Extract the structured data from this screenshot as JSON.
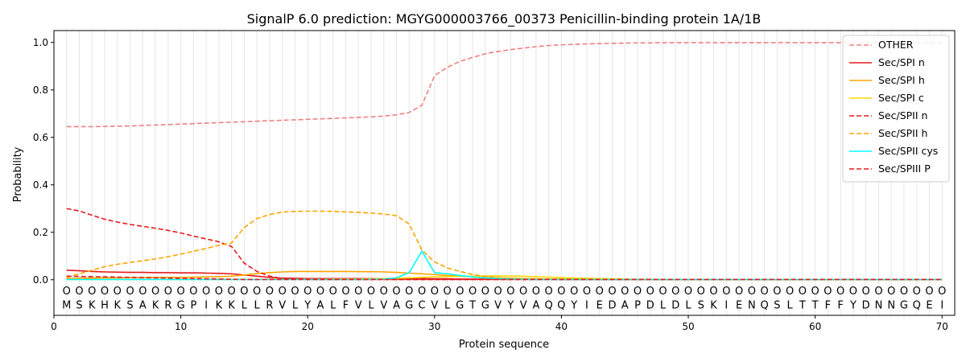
{
  "chart_data": {
    "type": "line",
    "title": "SignalP 6.0 prediction: MGYG000003766_00373 Penicillin-binding protein 1A/1B",
    "xlabel": "Protein sequence",
    "ylabel": "Probability",
    "xlim": [
      0,
      71
    ],
    "ylim": [
      -0.15,
      1.05
    ],
    "xticks": [
      0,
      10,
      20,
      30,
      40,
      50,
      60,
      70
    ],
    "yticks": [
      0.0,
      0.2,
      0.4,
      0.6,
      0.8,
      1.0
    ],
    "xtick_labels": [
      "0",
      "10",
      "20",
      "30",
      "40",
      "50",
      "60",
      "70"
    ],
    "ytick_labels": [
      "0.0",
      "0.2",
      "0.4",
      "0.6",
      "0.8",
      "1.0"
    ],
    "grid": "vertical lines at each residue",
    "legend_position": "top-right",
    "sequence": [
      "M",
      "S",
      "K",
      "H",
      "K",
      "S",
      "A",
      "K",
      "R",
      "G",
      "P",
      "I",
      "K",
      "K",
      "L",
      "L",
      "R",
      "V",
      "L",
      "Y",
      "A",
      "L",
      "F",
      "V",
      "L",
      "V",
      "A",
      "G",
      "C",
      "V",
      "L",
      "G",
      "T",
      "G",
      "V",
      "Y",
      "V",
      "A",
      "Q",
      "Q",
      "Y",
      "I",
      "E",
      "D",
      "A",
      "P",
      "D",
      "L",
      "D",
      "L",
      "S",
      "K",
      "I",
      "E",
      "N",
      "Q",
      "S",
      "L",
      "T",
      "T",
      "F",
      "F",
      "Y",
      "D",
      "N",
      "N",
      "G",
      "Q",
      "E",
      "I"
    ],
    "region_label": "O",
    "series": [
      {
        "name": "OTHER",
        "color": "#f08080",
        "dash": "dashed",
        "values": [
          0.645,
          0.645,
          0.645,
          0.646,
          0.647,
          0.648,
          0.65,
          0.652,
          0.654,
          0.656,
          0.658,
          0.66,
          0.662,
          0.664,
          0.666,
          0.668,
          0.67,
          0.672,
          0.674,
          0.676,
          0.678,
          0.68,
          0.682,
          0.684,
          0.686,
          0.69,
          0.695,
          0.705,
          0.735,
          0.86,
          0.895,
          0.92,
          0.937,
          0.952,
          0.962,
          0.97,
          0.976,
          0.982,
          0.987,
          0.99,
          0.992,
          0.994,
          0.995,
          0.996,
          0.997,
          0.998,
          0.998,
          0.999,
          0.999,
          0.999,
          0.999,
          0.999,
          0.999,
          0.999,
          0.999,
          0.999,
          0.999,
          0.999,
          0.999,
          0.999,
          0.999,
          0.999,
          0.999,
          0.999,
          0.999,
          0.999,
          0.999,
          0.999,
          0.999,
          0.999
        ]
      },
      {
        "name": "Sec/SPI n",
        "color": "#e41a1c",
        "dash": "solid",
        "values": [
          0.04,
          0.038,
          0.035,
          0.033,
          0.032,
          0.031,
          0.031,
          0.03,
          0.03,
          0.029,
          0.029,
          0.028,
          0.027,
          0.025,
          0.02,
          0.015,
          0.01,
          0.007,
          0.006,
          0.005,
          0.005,
          0.005,
          0.005,
          0.005,
          0.005,
          0.005,
          0.005,
          0.005,
          0.005,
          0.004,
          0.004,
          0.003,
          0.003,
          0.003,
          0.002,
          0.002,
          0.002,
          0.002,
          0.002,
          0.001,
          0.001,
          0.001,
          0.001,
          0.001,
          0.001,
          0.001,
          0.001,
          0.001,
          0.001,
          0.001,
          0.001,
          0.001,
          0.001,
          0.001,
          0.001,
          0.001,
          0.001,
          0.001,
          0.001,
          0.001,
          0.001,
          0.001,
          0.001,
          0.001,
          0.001,
          0.001,
          0.001,
          0.001,
          0.001,
          0.001
        ]
      },
      {
        "name": "Sec/SPI h",
        "color": "#ffa500",
        "dash": "solid",
        "values": [
          0.005,
          0.006,
          0.007,
          0.008,
          0.008,
          0.009,
          0.009,
          0.01,
          0.01,
          0.01,
          0.011,
          0.012,
          0.013,
          0.015,
          0.02,
          0.026,
          0.03,
          0.033,
          0.035,
          0.035,
          0.035,
          0.035,
          0.035,
          0.034,
          0.034,
          0.033,
          0.031,
          0.028,
          0.025,
          0.022,
          0.018,
          0.015,
          0.012,
          0.01,
          0.008,
          0.006,
          0.005,
          0.004,
          0.003,
          0.003,
          0.002,
          0.002,
          0.002,
          0.001,
          0.001,
          0.001,
          0.001,
          0.001,
          0.001,
          0.001,
          0.001,
          0.001,
          0.001,
          0.001,
          0.001,
          0.001,
          0.001,
          0.001,
          0.001,
          0.001,
          0.001,
          0.001,
          0.001,
          0.001,
          0.001,
          0.001,
          0.001,
          0.001,
          0.001,
          0.001
        ]
      },
      {
        "name": "Sec/SPI c",
        "color": "#ffd700",
        "dash": "solid",
        "values": [
          0.001,
          0.001,
          0.001,
          0.001,
          0.001,
          0.001,
          0.001,
          0.001,
          0.001,
          0.001,
          0.001,
          0.001,
          0.001,
          0.001,
          0.001,
          0.001,
          0.002,
          0.002,
          0.002,
          0.002,
          0.002,
          0.003,
          0.003,
          0.003,
          0.004,
          0.005,
          0.006,
          0.008,
          0.01,
          0.012,
          0.013,
          0.014,
          0.015,
          0.016,
          0.016,
          0.016,
          0.015,
          0.013,
          0.011,
          0.009,
          0.007,
          0.006,
          0.005,
          0.004,
          0.003,
          0.002,
          0.002,
          0.001,
          0.001,
          0.001,
          0.001,
          0.001,
          0.001,
          0.001,
          0.001,
          0.001,
          0.001,
          0.001,
          0.001,
          0.001,
          0.001,
          0.001,
          0.001,
          0.001,
          0.001,
          0.001,
          0.001,
          0.001,
          0.001,
          0.001
        ]
      },
      {
        "name": "Sec/SPII n",
        "color": "#e41a1c",
        "dash": "dashed",
        "values": [
          0.3,
          0.29,
          0.272,
          0.255,
          0.243,
          0.233,
          0.225,
          0.217,
          0.208,
          0.197,
          0.184,
          0.172,
          0.16,
          0.14,
          0.07,
          0.035,
          0.015,
          0.005,
          0.002,
          0.001,
          0.001,
          0.001,
          0.001,
          0.001,
          0.001,
          0.001,
          0.001,
          0.001,
          0.001,
          0.001,
          0.001,
          0.001,
          0.001,
          0.001,
          0.001,
          0.001,
          0.001,
          0.001,
          0.001,
          0.001,
          0.001,
          0.001,
          0.001,
          0.001,
          0.001,
          0.001,
          0.001,
          0.001,
          0.001,
          0.001,
          0.001,
          0.001,
          0.001,
          0.001,
          0.001,
          0.001,
          0.001,
          0.001,
          0.001,
          0.001,
          0.001,
          0.001,
          0.001,
          0.001,
          0.001,
          0.001,
          0.001,
          0.001,
          0.001,
          0.001
        ]
      },
      {
        "name": "Sec/SPII h",
        "color": "#ffa500",
        "dash": "dashed",
        "values": [
          0.01,
          0.025,
          0.04,
          0.055,
          0.065,
          0.073,
          0.08,
          0.088,
          0.097,
          0.108,
          0.12,
          0.132,
          0.145,
          0.155,
          0.22,
          0.258,
          0.275,
          0.285,
          0.288,
          0.289,
          0.289,
          0.288,
          0.286,
          0.284,
          0.281,
          0.277,
          0.27,
          0.235,
          0.125,
          0.075,
          0.05,
          0.035,
          0.022,
          0.014,
          0.009,
          0.006,
          0.004,
          0.003,
          0.002,
          0.002,
          0.001,
          0.001,
          0.001,
          0.001,
          0.001,
          0.001,
          0.001,
          0.001,
          0.001,
          0.001,
          0.001,
          0.001,
          0.001,
          0.001,
          0.001,
          0.001,
          0.001,
          0.001,
          0.001,
          0.001,
          0.001,
          0.001,
          0.001,
          0.001,
          0.001,
          0.001,
          0.001,
          0.001,
          0.001,
          0.001
        ]
      },
      {
        "name": "Sec/SPII cys",
        "color": "#00ffff",
        "dash": "solid",
        "values": [
          0.001,
          0.001,
          0.001,
          0.001,
          0.001,
          0.001,
          0.001,
          0.001,
          0.001,
          0.001,
          0.001,
          0.001,
          0.001,
          0.001,
          0.001,
          0.001,
          0.001,
          0.001,
          0.001,
          0.001,
          0.001,
          0.001,
          0.001,
          0.001,
          0.002,
          0.003,
          0.008,
          0.03,
          0.12,
          0.03,
          0.025,
          0.018,
          0.012,
          0.008,
          0.005,
          0.003,
          0.002,
          0.001,
          0.001,
          0.001,
          0.001,
          0.001,
          0.001,
          0.001,
          0.001,
          0.001,
          0.001,
          0.001,
          0.001,
          0.001,
          0.001,
          0.001,
          0.001,
          0.001,
          0.001,
          0.001,
          0.001,
          0.001,
          0.001,
          0.001,
          0.001,
          0.001,
          0.001,
          0.001,
          0.001,
          0.001,
          0.001,
          0.001,
          0.001,
          0.001
        ]
      },
      {
        "name": "Sec/SPIII P",
        "color": "#e41a1c",
        "dash": "dashed",
        "values": [
          0.015,
          0.014,
          0.013,
          0.012,
          0.011,
          0.01,
          0.009,
          0.008,
          0.007,
          0.006,
          0.005,
          0.004,
          0.003,
          0.002,
          0.001,
          0.001,
          0.001,
          0.001,
          0.001,
          0.001,
          0.001,
          0.001,
          0.001,
          0.001,
          0.001,
          0.001,
          0.001,
          0.001,
          0.001,
          0.001,
          0.001,
          0.001,
          0.001,
          0.001,
          0.001,
          0.001,
          0.001,
          0.001,
          0.001,
          0.001,
          0.001,
          0.001,
          0.001,
          0.001,
          0.001,
          0.001,
          0.001,
          0.001,
          0.001,
          0.001,
          0.001,
          0.001,
          0.001,
          0.001,
          0.001,
          0.001,
          0.001,
          0.001,
          0.001,
          0.001,
          0.001,
          0.001,
          0.001,
          0.001,
          0.001,
          0.001,
          0.001,
          0.001,
          0.001,
          0.001
        ]
      }
    ]
  }
}
